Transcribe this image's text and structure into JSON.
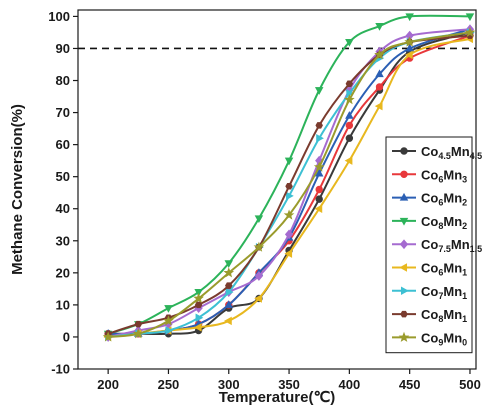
{
  "chart_data": {
    "type": "line",
    "title": "",
    "xlabel": "Temperature(℃)",
    "ylabel": "Methane Conversion(%)",
    "xlim": [
      175,
      505
    ],
    "ylim": [
      -10,
      102
    ],
    "xticks": [
      200,
      250,
      300,
      350,
      400,
      450,
      500
    ],
    "yticks": [
      -10,
      0,
      10,
      20,
      30,
      40,
      50,
      60,
      70,
      80,
      90,
      100
    ],
    "reference_line": {
      "y": 90,
      "style": "dashed"
    },
    "legend_position": "right",
    "x": [
      200,
      225,
      250,
      275,
      300,
      325,
      350,
      375,
      400,
      425,
      450,
      500
    ],
    "series": [
      {
        "label_main": "Co",
        "sub1": "4.5",
        "label_mid": "Mn",
        "sub2": "4.5",
        "color": "#3a3a3a",
        "marker": "circle",
        "values": [
          1,
          1,
          1,
          2,
          9,
          12,
          27,
          43,
          62,
          77,
          89,
          95
        ]
      },
      {
        "label_main": "Co",
        "sub1": "6",
        "label_mid": "Mn",
        "sub2": "3",
        "color": "#e8383b",
        "marker": "circle",
        "values": [
          1,
          1,
          2,
          4,
          10,
          20,
          30,
          46,
          66,
          78,
          87,
          94
        ]
      },
      {
        "label_main": "Co",
        "sub1": "6",
        "label_mid": "Mn",
        "sub2": "2",
        "color": "#2b5fb4",
        "marker": "triangle-up",
        "values": [
          1,
          1,
          2,
          4,
          10,
          20,
          31,
          51,
          69,
          82,
          90,
          96
        ]
      },
      {
        "label_main": "Co",
        "sub1": "8",
        "label_mid": "Mn",
        "sub2": "2",
        "color": "#2cb35a",
        "marker": "triangle-down",
        "values": [
          1,
          4,
          9,
          14,
          23,
          37,
          55,
          77,
          92,
          97,
          100,
          100
        ]
      },
      {
        "label_main": "Co",
        "sub1": "7.5",
        "label_mid": "Mn",
        "sub2": "1.5",
        "color": "#a56bd0",
        "marker": "diamond",
        "values": [
          0,
          2,
          4,
          9,
          14,
          19,
          32,
          55,
          77,
          89,
          94,
          96
        ]
      },
      {
        "label_main": "Co",
        "sub1": "6",
        "label_mid": "Mn",
        "sub2": "1",
        "color": "#e8b81f",
        "marker": "triangle-left",
        "values": [
          0,
          1,
          2,
          3,
          5,
          12,
          26,
          40,
          55,
          72,
          88,
          93
        ]
      },
      {
        "label_main": "Co",
        "sub1": "7",
        "label_mid": "Mn",
        "sub2": "1",
        "color": "#3dc0d3",
        "marker": "triangle-right",
        "values": [
          0,
          1,
          2,
          6,
          14,
          28,
          44,
          62,
          76,
          87,
          92,
          95
        ]
      },
      {
        "label_main": "Co",
        "sub1": "8",
        "label_mid": "Mn",
        "sub2": "1",
        "color": "#7a3b2e",
        "marker": "hexagon",
        "values": [
          1,
          4,
          6,
          10,
          16,
          28,
          47,
          66,
          79,
          88,
          92,
          94
        ]
      },
      {
        "label_main": "Co",
        "sub1": "9",
        "label_mid": "Mn",
        "sub2": "0",
        "color": "#9a9b2c",
        "marker": "star",
        "values": [
          0,
          1,
          5,
          12,
          20,
          28,
          38,
          53,
          74,
          88,
          92,
          95
        ]
      }
    ]
  }
}
